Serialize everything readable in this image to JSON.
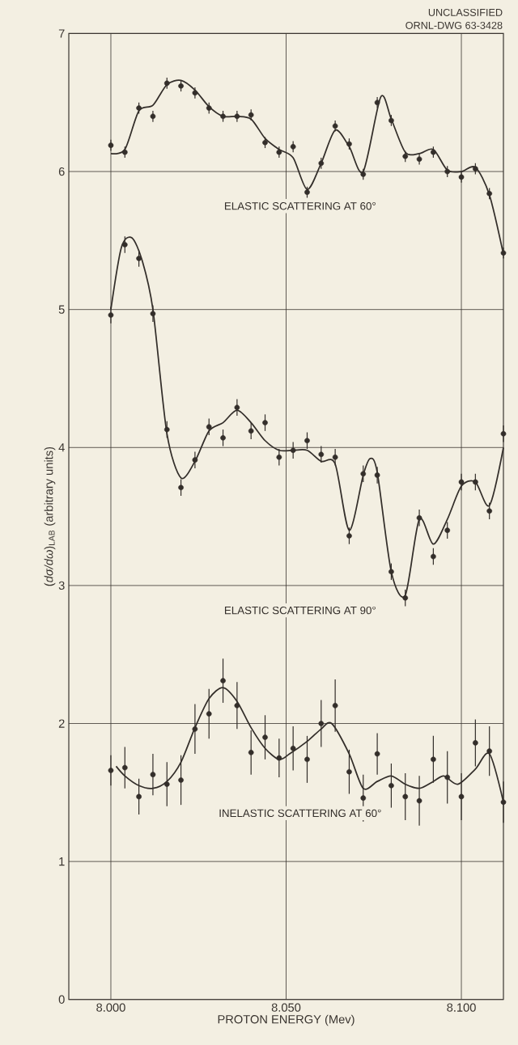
{
  "chart_data": {
    "type": "scatter",
    "xlabel": "PROTON ENERGY (Mev)",
    "ylabel": "(*dσ/dω*)$_{LAB}$ (arbitrary units)",
    "annotations": [
      "UNCLASSIFIED",
      "ORNL-DWG 63-3428"
    ],
    "x": [
      8.0,
      8.004,
      8.008,
      8.012,
      8.016,
      8.02,
      8.024,
      8.028,
      8.032,
      8.036,
      8.04,
      8.044,
      8.048,
      8.052,
      8.056,
      8.06,
      8.064,
      8.068,
      8.072,
      8.076,
      8.08,
      8.084,
      8.088,
      8.092,
      8.096,
      8.1,
      8.104,
      8.108,
      8.112
    ],
    "series": [
      {
        "name": "ELASTIC SCATTERING AT 60°",
        "color": "#332e2a",
        "values": [
          6.19,
          6.14,
          6.46,
          6.4,
          6.64,
          6.62,
          6.57,
          6.46,
          6.4,
          6.4,
          6.41,
          6.21,
          6.14,
          6.18,
          5.85,
          6.06,
          6.33,
          6.2,
          5.98,
          6.5,
          6.37,
          6.11,
          6.09,
          6.14,
          6.0,
          5.96,
          6.02,
          5.84,
          5.41
        ],
        "errors": [
          0.04,
          0.04,
          0.04,
          0.04,
          0.04,
          0.04,
          0.04,
          0.04,
          0.04,
          0.04,
          0.04,
          0.04,
          0.04,
          0.04,
          0.04,
          0.04,
          0.04,
          0.04,
          0.04,
          0.04,
          0.04,
          0.04,
          0.04,
          0.04,
          0.04,
          0.04,
          0.04,
          0.04,
          0.04
        ]
      },
      {
        "name": "ELASTIC SCATTERING AT 90°",
        "color": "#332e2a",
        "values": [
          4.96,
          5.47,
          5.37,
          4.97,
          4.13,
          3.71,
          3.91,
          4.15,
          4.07,
          4.29,
          4.12,
          4.18,
          3.93,
          3.98,
          4.05,
          3.95,
          3.93,
          3.36,
          3.81,
          3.8,
          3.1,
          2.91,
          3.49,
          3.21,
          3.4,
          3.75,
          3.75,
          3.54,
          4.1
        ],
        "errors": [
          0.06,
          0.06,
          0.06,
          0.06,
          0.06,
          0.06,
          0.06,
          0.06,
          0.06,
          0.06,
          0.06,
          0.06,
          0.06,
          0.06,
          0.06,
          0.06,
          0.06,
          0.06,
          0.06,
          0.06,
          0.06,
          0.06,
          0.06,
          0.06,
          0.06,
          0.06,
          0.06,
          0.06,
          0.06
        ]
      },
      {
        "name": "INELASTIC SCATTERING AT 60°",
        "color": "#332e2a",
        "values": [
          1.66,
          1.68,
          1.47,
          1.63,
          1.56,
          1.59,
          1.96,
          2.07,
          2.31,
          2.13,
          1.79,
          1.9,
          1.75,
          1.82,
          1.74,
          2.0,
          2.13,
          1.65,
          1.46,
          1.78,
          1.55,
          1.47,
          1.44,
          1.74,
          1.61,
          1.47,
          1.86,
          1.8,
          1.43
        ],
        "errors": [
          0.11,
          0.15,
          0.13,
          0.15,
          0.16,
          0.18,
          0.18,
          0.18,
          0.16,
          0.17,
          0.16,
          0.16,
          0.14,
          0.16,
          0.17,
          0.17,
          0.19,
          0.16,
          0.17,
          0.15,
          0.16,
          0.17,
          0.18,
          0.17,
          0.19,
          0.17,
          0.17,
          0.18,
          0.15
        ]
      },
      {
        "type": "line",
        "marker": "none",
        "color": "#332e2a",
        "x": [
          8.0,
          8.004,
          8.008,
          8.012,
          8.016,
          8.02,
          8.024,
          8.028,
          8.032,
          8.036,
          8.04,
          8.044,
          8.048,
          8.052,
          8.056,
          8.06,
          8.064,
          8.068,
          8.072,
          8.077,
          8.08,
          8.084,
          8.088,
          8.092,
          8.096,
          8.1,
          8.104,
          8.108,
          8.112
        ],
        "values": [
          6.13,
          6.16,
          6.44,
          6.48,
          6.63,
          6.66,
          6.59,
          6.47,
          6.4,
          6.4,
          6.38,
          6.24,
          6.16,
          6.1,
          5.87,
          6.06,
          6.3,
          6.18,
          6.0,
          6.54,
          6.38,
          6.14,
          6.13,
          6.16,
          6.01,
          6.0,
          6.03,
          5.83,
          5.4
        ]
      },
      {
        "type": "line",
        "marker": "none",
        "color": "#332e2a",
        "x": [
          8.0,
          8.003,
          8.006,
          8.009,
          8.012,
          8.016,
          8.02,
          8.024,
          8.028,
          8.032,
          8.036,
          8.04,
          8.044,
          8.048,
          8.052,
          8.056,
          8.06,
          8.064,
          8.068,
          8.072,
          8.074,
          8.076,
          8.08,
          8.084,
          8.088,
          8.092,
          8.096,
          8.1,
          8.104,
          8.108,
          8.112
        ],
        "values": [
          5.0,
          5.45,
          5.52,
          5.35,
          5.0,
          4.1,
          3.78,
          3.9,
          4.12,
          4.18,
          4.27,
          4.18,
          4.05,
          3.98,
          3.98,
          3.98,
          3.9,
          3.88,
          3.4,
          3.8,
          3.92,
          3.82,
          3.1,
          2.93,
          3.48,
          3.3,
          3.48,
          3.72,
          3.75,
          3.58,
          4.0
        ]
      },
      {
        "type": "line",
        "marker": "none",
        "color": "#332e2a",
        "x": [
          8.0015,
          8.004,
          8.008,
          8.012,
          8.016,
          8.02,
          8.024,
          8.028,
          8.032,
          8.036,
          8.04,
          8.044,
          8.048,
          8.051,
          8.056,
          8.06,
          8.063,
          8.068,
          8.072,
          8.076,
          8.08,
          8.084,
          8.088,
          8.092,
          8.095,
          8.099,
          8.104,
          8.108,
          8.112
        ],
        "values": [
          1.69,
          1.62,
          1.55,
          1.53,
          1.58,
          1.72,
          1.97,
          2.18,
          2.26,
          2.16,
          1.97,
          1.82,
          1.74,
          1.78,
          1.87,
          1.96,
          2.0,
          1.78,
          1.53,
          1.58,
          1.62,
          1.56,
          1.53,
          1.58,
          1.62,
          1.56,
          1.67,
          1.78,
          1.43
        ]
      }
    ],
    "marker": "circle",
    "line_style": "solid",
    "grid": true,
    "xlim": [
      7.988,
      8.112
    ],
    "ylim": [
      0,
      7
    ],
    "xticks": [
      {
        "value": 8.0,
        "label": "8.000"
      },
      {
        "value": 8.05,
        "label": "8.050"
      },
      {
        "value": 8.1,
        "label": "8.100"
      }
    ],
    "yticks": [
      0,
      1,
      2,
      3,
      4,
      5,
      6,
      7
    ]
  }
}
